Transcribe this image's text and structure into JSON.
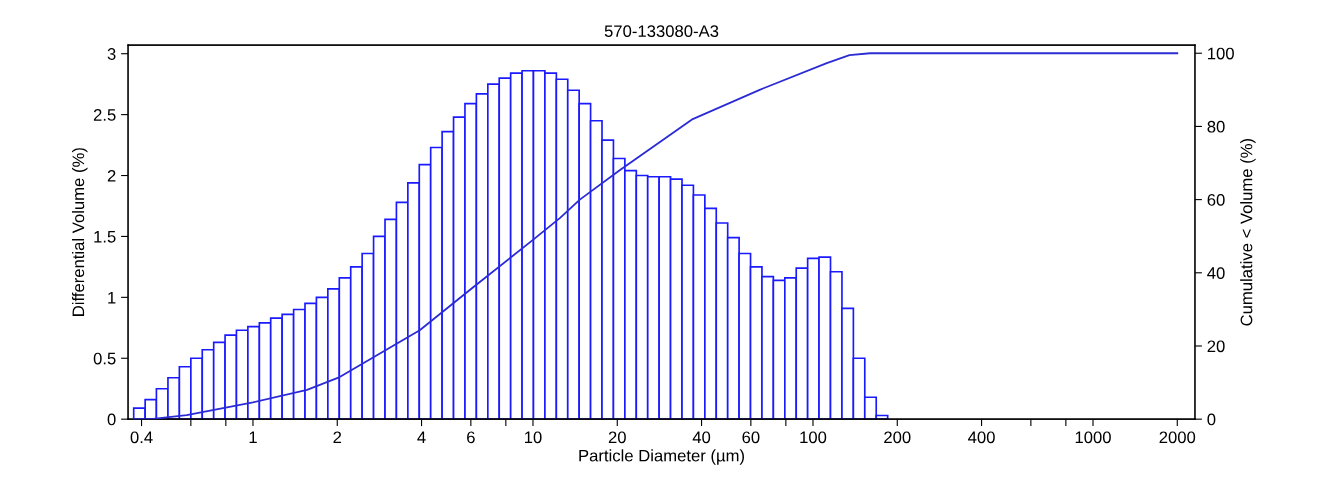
{
  "chart_data": {
    "type": "histogram",
    "title": "570-133080-A3",
    "xlabel": "Particle Diameter (µm)",
    "ylabel": "Differential Volume (%)",
    "y2label": "Cumulative < Volume (%)",
    "log": "x",
    "grid": false,
    "xlim": [
      0.358,
      2313
    ],
    "xticks": [
      0.4,
      {
        "value": 0.6,
        "label": null
      },
      {
        "value": 0.8,
        "label": null
      },
      1,
      2,
      4,
      6,
      {
        "value": 8,
        "label": null
      },
      10,
      20,
      40,
      60,
      {
        "value": 80,
        "label": null
      },
      100,
      200,
      400,
      {
        "value": 600,
        "label": null
      },
      {
        "value": 800,
        "label": null
      },
      1000,
      2000
    ],
    "ylim": [
      0,
      3.07
    ],
    "yticks": [
      0,
      0.5,
      1,
      1.5,
      2,
      2.5,
      3
    ],
    "y2lim": [
      0,
      102.2
    ],
    "y2ticks": [
      0,
      20,
      40,
      60,
      80,
      100
    ],
    "bins": [
      0.375,
      0.412,
      0.452,
      0.497,
      0.546,
      0.6,
      0.659,
      0.724,
      0.795,
      0.873,
      0.959,
      1.054,
      1.157,
      1.271,
      1.397,
      1.534,
      1.685,
      1.851,
      2.034,
      2.234,
      2.454,
      2.696,
      2.962,
      3.253,
      3.574,
      3.926,
      4.312,
      4.737,
      5.204,
      5.716,
      6.279,
      6.898,
      7.577,
      8.324,
      9.143,
      10.04,
      11.03,
      12.12,
      13.31,
      14.62,
      16.06,
      17.64,
      19.38,
      21.29,
      23.39,
      25.69,
      28.22,
      31.0,
      34.06,
      37.41,
      41.1,
      45.14,
      49.59,
      54.47,
      59.84,
      65.73,
      72.2,
      79.32,
      87.13,
      95.71,
      105.1,
      115.5,
      126.9,
      139.4,
      153.1,
      168.2,
      184.8
    ],
    "series": [
      {
        "color": "#1a1aff",
        "values": [
          0.09,
          0.16,
          0.25,
          0.34,
          0.43,
          0.5,
          0.57,
          0.63,
          0.69,
          0.73,
          0.76,
          0.79,
          0.83,
          0.86,
          0.9,
          0.95,
          1.0,
          1.07,
          1.16,
          1.25,
          1.36,
          1.5,
          1.64,
          1.78,
          1.94,
          2.09,
          2.23,
          2.36,
          2.48,
          2.59,
          2.67,
          2.75,
          2.8,
          2.84,
          2.86,
          2.86,
          2.84,
          2.79,
          2.7,
          2.59,
          2.45,
          2.29,
          2.14,
          2.04,
          2.0,
          1.99,
          1.99,
          1.97,
          1.92,
          1.84,
          1.73,
          1.61,
          1.49,
          1.36,
          1.25,
          1.17,
          1.14,
          1.16,
          1.24,
          1.32,
          1.33,
          1.21,
          0.91,
          0.5,
          0.18,
          0.03
        ]
      },
      {
        "type": "line",
        "axis": "y2",
        "color": "#2b2bd6",
        "x": [
          0.375,
          0.44,
          0.58,
          1.0,
          1.56,
          2.04,
          3.94,
          6.1,
          10.0,
          12.5,
          14.7,
          20.4,
          37.2,
          64.5,
          112,
          135,
          160,
          2000
        ],
        "values": [
          0,
          0.1,
          1.1,
          4.6,
          8,
          11.5,
          24.3,
          36,
          49,
          55,
          60,
          68,
          82,
          90,
          97.3,
          99.5,
          100,
          100
        ]
      }
    ]
  }
}
